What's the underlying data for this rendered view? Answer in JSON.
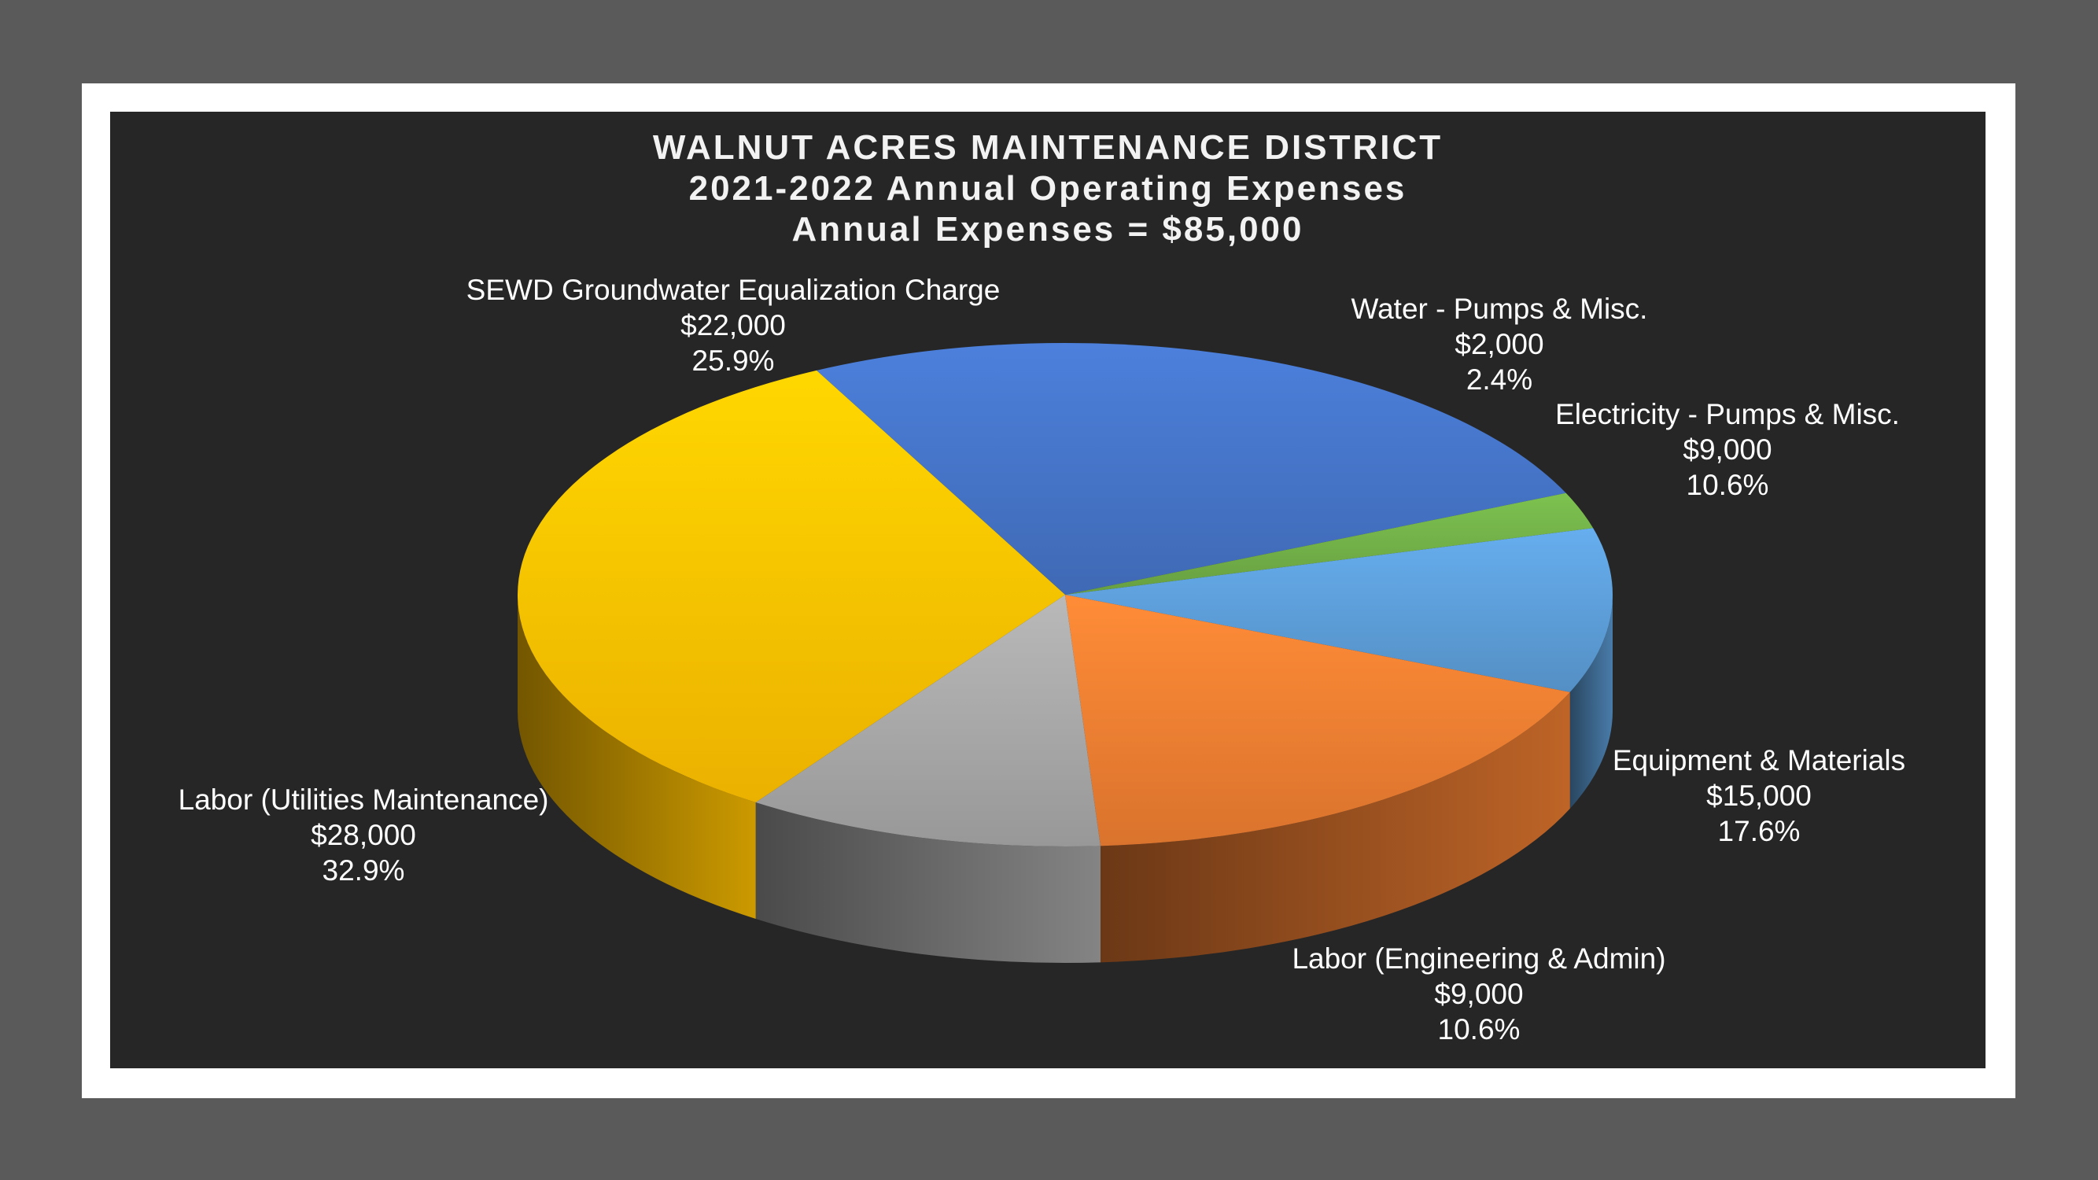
{
  "chart_data": {
    "type": "pie",
    "title": [
      "WALNUT ACRES MAINTENANCE DISTRICT",
      "2021-2022 Annual Operating Expenses",
      "Annual Expenses = $85,000"
    ],
    "slices": [
      {
        "name": "SEWD Groundwater Equalization Charge",
        "value": 22000,
        "value_label": "$22,000",
        "percent_label": "25.9%",
        "color": "#4472c4"
      },
      {
        "name": "Water - Pumps & Misc.",
        "value": 2000,
        "value_label": "$2,000",
        "percent_label": "2.4%",
        "color": "#70ad47"
      },
      {
        "name": "Electricity - Pumps & Misc.",
        "value": 9000,
        "value_label": "$9,000",
        "percent_label": "10.6%",
        "color": "#5b9bd5"
      },
      {
        "name": "Equipment & Materials",
        "value": 15000,
        "value_label": "$15,000",
        "percent_label": "17.6%",
        "color": "#ed7d31"
      },
      {
        "name": "Labor (Engineering & Admin)",
        "value": 9000,
        "value_label": "$9,000",
        "percent_label": "10.6%",
        "color": "#a5a5a5"
      },
      {
        "name": "Labor (Utilities Maintenance)",
        "value": 28000,
        "value_label": "$28,000",
        "percent_label": "32.9%",
        "color": "#ffc000"
      }
    ],
    "style": "3d"
  }
}
